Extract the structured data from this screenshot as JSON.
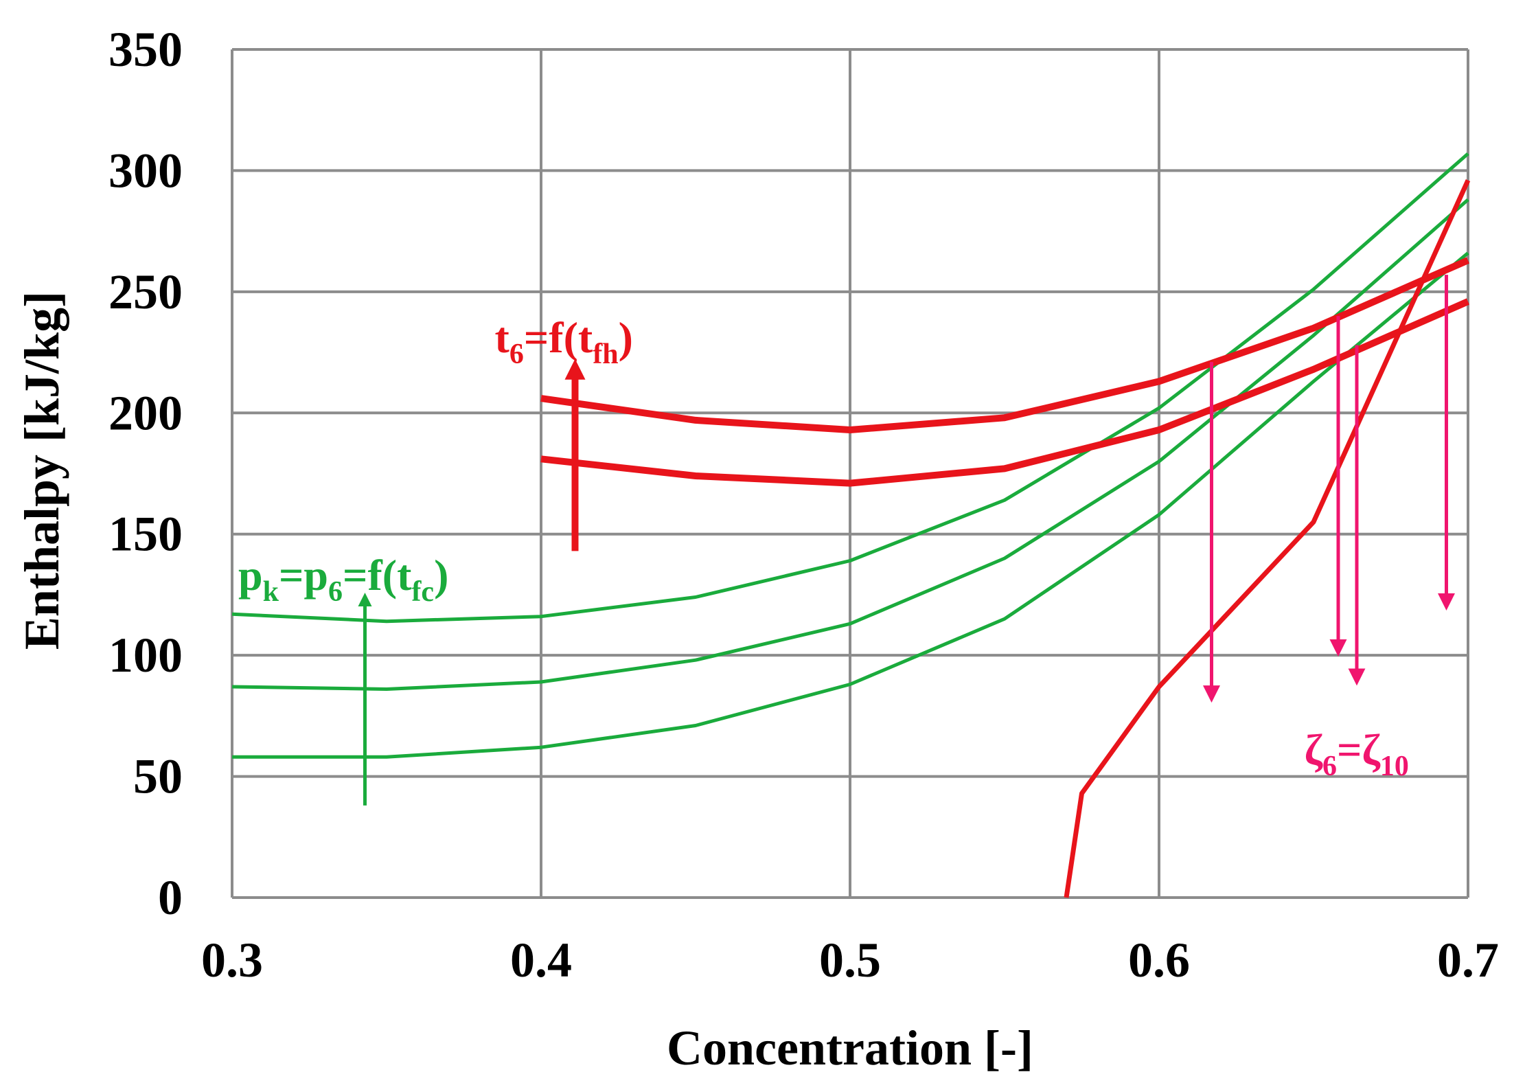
{
  "chart_data": {
    "type": "line",
    "title": "",
    "xlabel": "Concentration [-]",
    "ylabel": "Enthalpy [kJ/kg]",
    "xlim": [
      0.3,
      0.7
    ],
    "ylim": [
      0,
      350
    ],
    "xticks": [
      0.3,
      0.4,
      0.5,
      0.6,
      0.7
    ],
    "yticks": [
      0,
      50,
      100,
      150,
      200,
      250,
      300,
      350
    ],
    "xtick_labels": [
      "0.3",
      "0.4",
      "0.5",
      "0.6",
      "0.7"
    ],
    "ytick_labels": [
      "0",
      "50",
      "100",
      "150",
      "200",
      "250",
      "300",
      "350"
    ],
    "grid": true,
    "colors": {
      "green": "#1aab3c",
      "red": "#e8141b",
      "pink": "#f0156e",
      "grid": "#8c8c8c"
    },
    "series": [
      {
        "name": "green-p1",
        "color": "#1aab3c",
        "style": "thin",
        "x": [
          0.3,
          0.35,
          0.4,
          0.45,
          0.5,
          0.55,
          0.6,
          0.65,
          0.7
        ],
        "y": [
          58,
          58,
          62,
          71,
          88,
          115,
          158,
          213,
          266
        ]
      },
      {
        "name": "green-p2",
        "color": "#1aab3c",
        "style": "thin",
        "x": [
          0.3,
          0.35,
          0.4,
          0.45,
          0.5,
          0.55,
          0.6,
          0.65,
          0.7
        ],
        "y": [
          87,
          86,
          89,
          98,
          113,
          140,
          180,
          232,
          288
        ]
      },
      {
        "name": "green-p3",
        "color": "#1aab3c",
        "style": "thin",
        "x": [
          0.3,
          0.35,
          0.4,
          0.45,
          0.5,
          0.55,
          0.6,
          0.65,
          0.7
        ],
        "y": [
          117,
          114,
          116,
          124,
          139,
          164,
          202,
          251,
          307
        ]
      },
      {
        "name": "red-t1",
        "color": "#e8141b",
        "style": "thick",
        "x": [
          0.4,
          0.45,
          0.5,
          0.55,
          0.6,
          0.65,
          0.7
        ],
        "y": [
          181,
          174,
          171,
          177,
          193,
          218,
          246
        ]
      },
      {
        "name": "red-t2",
        "color": "#e8141b",
        "style": "thick",
        "x": [
          0.4,
          0.45,
          0.5,
          0.55,
          0.6,
          0.65,
          0.7
        ],
        "y": [
          206,
          197,
          193,
          198,
          213,
          235,
          263
        ]
      },
      {
        "name": "red-crystallization",
        "color": "#e8141b",
        "style": "medium",
        "x": [
          0.57,
          0.575,
          0.6,
          0.65,
          0.7
        ],
        "y": [
          0,
          43,
          87,
          155,
          296
        ]
      }
    ],
    "arrows": [
      {
        "name": "green-arrow",
        "color": "#1aab3c",
        "x": 0.343,
        "y_from": 38,
        "y_to": 123,
        "width": "thin"
      },
      {
        "name": "red-arrow",
        "color": "#e8141b",
        "x": 0.411,
        "y_from": 143,
        "y_to": 218,
        "width": "thick"
      },
      {
        "name": "pink-arrow-1",
        "color": "#f0156e",
        "x": 0.617,
        "y_from": 221,
        "y_to": 84,
        "width": "thin"
      },
      {
        "name": "pink-arrow-2",
        "color": "#f0156e",
        "x": 0.658,
        "y_from": 240,
        "y_to": 103,
        "width": "thin"
      },
      {
        "name": "pink-arrow-3",
        "color": "#f0156e",
        "x": 0.664,
        "y_from": 228,
        "y_to": 91,
        "width": "thin"
      },
      {
        "name": "pink-arrow-4",
        "color": "#f0156e",
        "x": 0.693,
        "y_from": 257,
        "y_to": 122,
        "width": "thin"
      }
    ],
    "annotations": {
      "red": {
        "parts": [
          "t",
          "6",
          "=f(t",
          "fh",
          ")"
        ],
        "x": 0.385,
        "y": 225
      },
      "green": {
        "parts": [
          "p",
          "k",
          "=p",
          "6",
          "=f(t",
          "fc",
          ")"
        ],
        "x": 0.302,
        "y": 127
      },
      "pink": {
        "parts": [
          "ζ",
          "6",
          "=ζ",
          "10"
        ],
        "x": 0.647,
        "y": 55
      }
    }
  }
}
